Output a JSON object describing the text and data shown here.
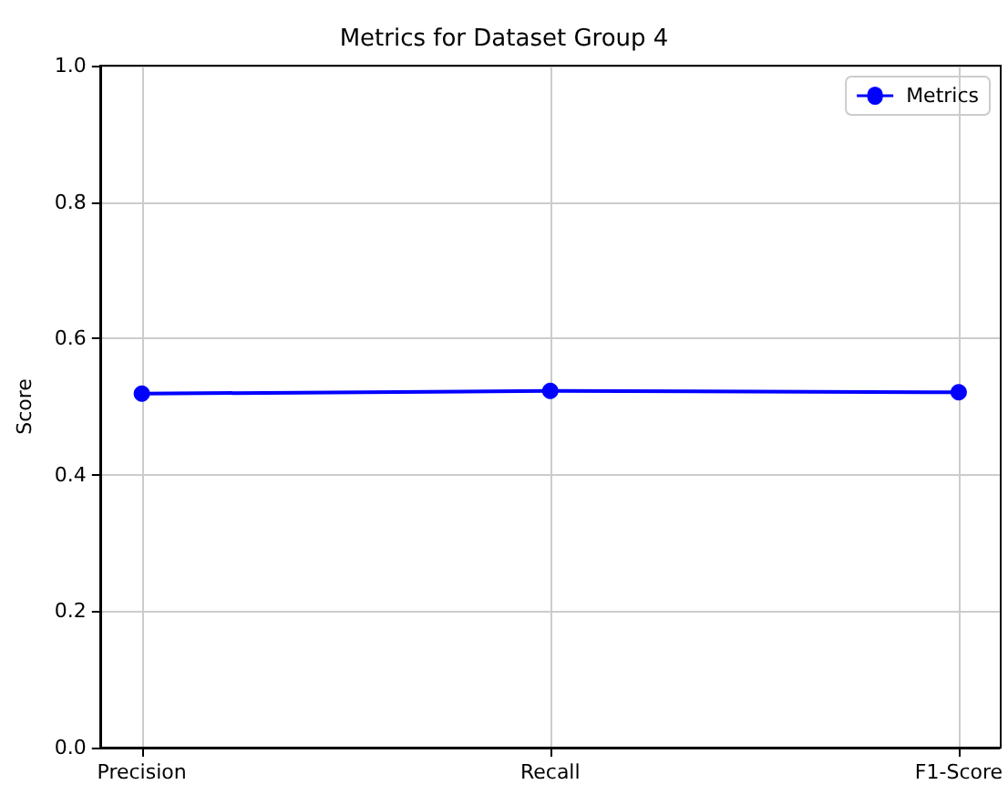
{
  "chart_data": {
    "type": "line",
    "title": "Metrics for Dataset Group 4",
    "ylabel": "Score",
    "categories": [
      "Precision",
      "Recall",
      "F1-Score"
    ],
    "series": [
      {
        "name": "Metrics",
        "color": "#0000ff",
        "values": [
          0.519,
          0.523,
          0.521
        ]
      }
    ],
    "ylim": [
      0,
      1
    ],
    "yticks": [
      {
        "value": 0,
        "label": "0.0"
      },
      0.2,
      0.4,
      0.6,
      0.8,
      {
        "value": 1,
        "label": "1.0"
      }
    ],
    "grid": true,
    "legend": "top right",
    "marker": "circle",
    "line_style": "solid"
  }
}
